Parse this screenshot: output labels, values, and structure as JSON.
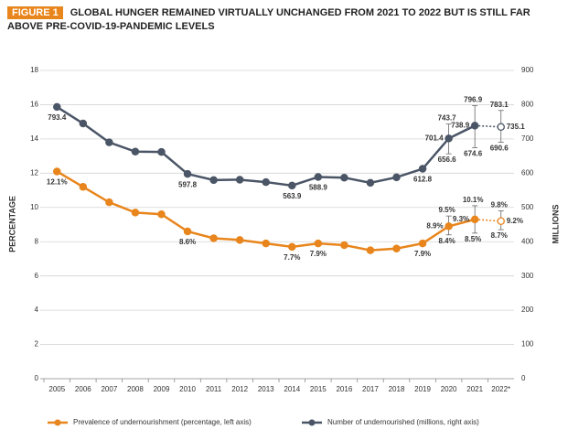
{
  "chart_data": {
    "type": "line",
    "badge": "FIGURE 1",
    "title": "GLOBAL HUNGER REMAINED VIRTUALLY UNCHANGED FROM 2021 TO 2022 BUT IS STILL FAR ABOVE PRE-COVID-19-PANDEMIC LEVELS",
    "ylabel": "PERCENTAGE",
    "y2label": "MILLIONS",
    "categories": [
      "2005",
      "2006",
      "2007",
      "2008",
      "2009",
      "2010",
      "2011",
      "2012",
      "2013",
      "2014",
      "2015",
      "2016",
      "2017",
      "2018",
      "2019",
      "2020",
      "2021",
      "2022*"
    ],
    "ylim": [
      0,
      18
    ],
    "yticks": [
      0,
      2,
      4,
      6,
      8,
      10,
      12,
      14,
      16,
      18
    ],
    "y2lim": [
      0,
      900
    ],
    "y2ticks": [
      0,
      100,
      200,
      300,
      400,
      500,
      600,
      700,
      800,
      900
    ],
    "grid": true,
    "projected_last": true,
    "series": [
      {
        "name": "Prevalence of undernourishment (percentage, left axis)",
        "color": "#e8851c",
        "axis": "y",
        "values": [
          12.1,
          11.2,
          10.3,
          9.7,
          9.6,
          8.6,
          8.2,
          8.1,
          7.9,
          7.7,
          7.9,
          7.8,
          7.5,
          7.6,
          7.9,
          8.9,
          9.3,
          9.2
        ],
        "value_labels": [
          "12.1%",
          null,
          null,
          null,
          null,
          "8.6%",
          null,
          null,
          null,
          "7.7%",
          "7.9%",
          null,
          null,
          null,
          "7.9%",
          "8.9%",
          "9.3%",
          "9.2%"
        ],
        "low": [
          null,
          null,
          null,
          null,
          null,
          null,
          null,
          null,
          null,
          null,
          null,
          null,
          null,
          null,
          null,
          8.4,
          8.5,
          8.7
        ],
        "high": [
          null,
          null,
          null,
          null,
          null,
          null,
          null,
          null,
          null,
          null,
          null,
          null,
          null,
          null,
          null,
          9.5,
          10.1,
          9.8
        ],
        "low_labels": [
          null,
          null,
          null,
          null,
          null,
          null,
          null,
          null,
          null,
          null,
          null,
          null,
          null,
          null,
          null,
          "8.4%",
          "8.5%",
          "8.7%"
        ],
        "high_labels": [
          null,
          null,
          null,
          null,
          null,
          null,
          null,
          null,
          null,
          null,
          null,
          null,
          null,
          null,
          null,
          "9.5%",
          "10.1%",
          "9.8%"
        ]
      },
      {
        "name": "Number of undernourished (millions, right axis)",
        "color": "#4a5566",
        "axis": "y2",
        "values": [
          793.4,
          745,
          690,
          663,
          662,
          597.8,
          580,
          581,
          574,
          563.9,
          588.9,
          587,
          572,
          588,
          612.8,
          701.4,
          738.9,
          735.1
        ],
        "value_labels": [
          "793.4",
          null,
          null,
          null,
          null,
          "597.8",
          null,
          null,
          null,
          "563.9",
          "588.9",
          null,
          null,
          null,
          "612.8",
          "701.4",
          "738.9",
          "735.1"
        ],
        "low": [
          null,
          null,
          null,
          null,
          null,
          null,
          null,
          null,
          null,
          null,
          null,
          null,
          null,
          null,
          null,
          656.6,
          674.6,
          690.6
        ],
        "high": [
          null,
          null,
          null,
          null,
          null,
          null,
          null,
          null,
          null,
          null,
          null,
          null,
          null,
          null,
          null,
          743.7,
          796.9,
          783.1
        ],
        "low_labels": [
          null,
          null,
          null,
          null,
          null,
          null,
          null,
          null,
          null,
          null,
          null,
          null,
          null,
          null,
          null,
          "656.6",
          "674.6",
          "690.6"
        ],
        "high_labels": [
          null,
          null,
          null,
          null,
          null,
          null,
          null,
          null,
          null,
          null,
          null,
          null,
          null,
          null,
          null,
          "743.7",
          "796.9",
          "783.1"
        ]
      }
    ]
  }
}
